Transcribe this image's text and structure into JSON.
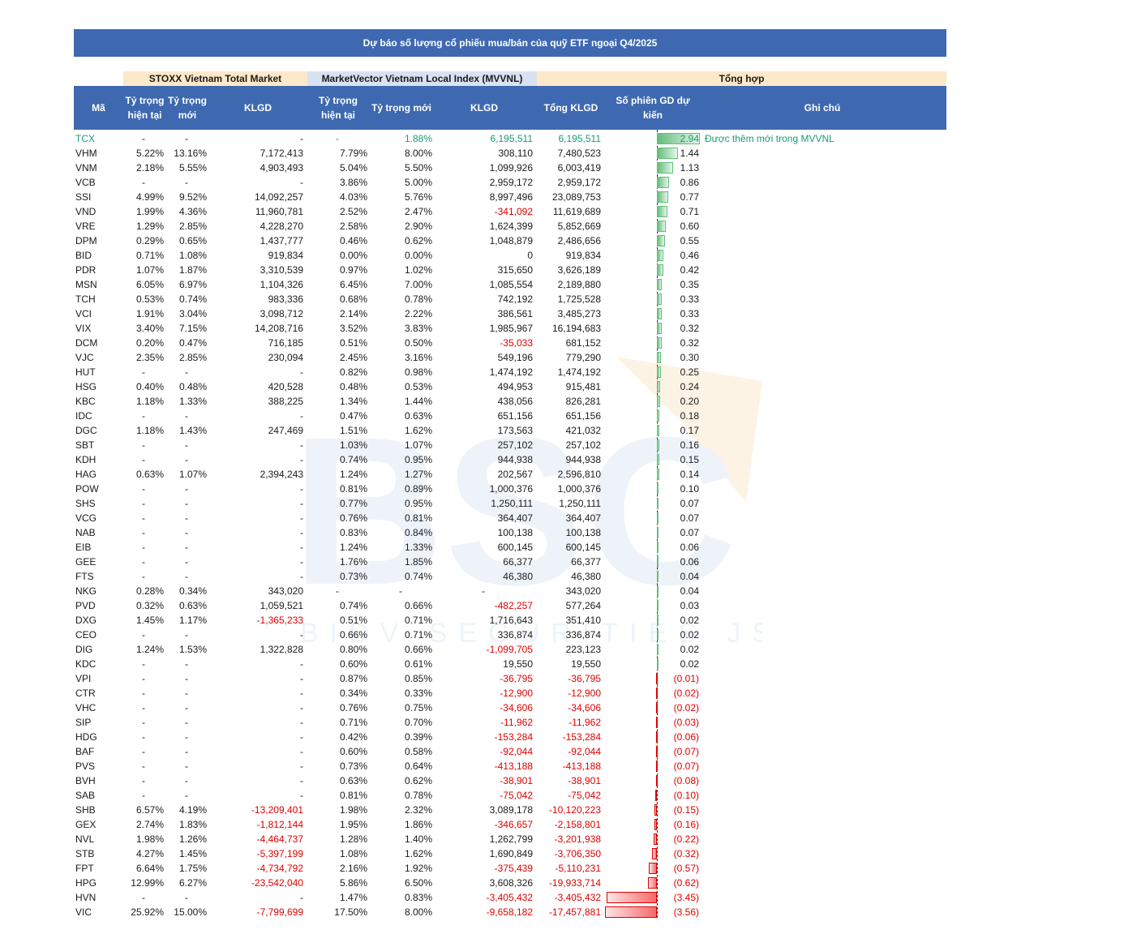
{
  "title": "Dự báo số lượng cổ phiếu mua/bán của quỹ ETF ngoại Q4/2025",
  "groups": {
    "stoxx": "STOXX Vietnam Total Market",
    "mvvnl": "MarketVector Vietnam Local Index (MVVNL)",
    "summary": "Tổng hợp"
  },
  "headers": {
    "code": "Mã",
    "w_current_1": "Tỷ trọng",
    "w_current_2": "hiện tại",
    "w_new_1": "Tỷ trọng",
    "w_new_2": "mới",
    "klgd": "KLGD",
    "w_current_b_1": "Tỷ trọng",
    "w_current_b_2": "hiện tại",
    "w_new_b": "Tỷ trọng mới",
    "klgd_b": "KLGD",
    "total": "Tổng KLGD",
    "sessions_1": "Số phiên GD dự",
    "sessions_2": "kiến",
    "note": "Ghi chú"
  },
  "watermark": {
    "logo": "BSC",
    "tagline": "BIDV SECURITIES JSC"
  },
  "rows": [
    {
      "code": "TCX",
      "s_cur": "-",
      "s_new": "-",
      "s_kl": "-",
      "m_cur": "-",
      "m_new": "1.88%",
      "m_kl": "6,195,511",
      "total": "6,195,511",
      "sessions": "2.94",
      "v": 2.94,
      "note": "Được thêm mới trong MVVNL"
    },
    {
      "code": "VHM",
      "s_cur": "5.22%",
      "s_new": "13.16%",
      "s_kl": "7,172,413",
      "m_cur": "7.79%",
      "m_new": "8.00%",
      "m_kl": "308,110",
      "total": "7,480,523",
      "sessions": "1.44",
      "v": 1.44,
      "note": ""
    },
    {
      "code": "VNM",
      "s_cur": "2.18%",
      "s_new": "5.55%",
      "s_kl": "4,903,493",
      "m_cur": "5.04%",
      "m_new": "5.50%",
      "m_kl": "1,099,926",
      "total": "6,003,419",
      "sessions": "1.13",
      "v": 1.13,
      "note": ""
    },
    {
      "code": "VCB",
      "s_cur": "-",
      "s_new": "-",
      "s_kl": "-",
      "m_cur": "3.86%",
      "m_new": "5.00%",
      "m_kl": "2,959,172",
      "total": "2,959,172",
      "sessions": "0.86",
      "v": 0.86,
      "note": ""
    },
    {
      "code": "SSI",
      "s_cur": "4.99%",
      "s_new": "9.52%",
      "s_kl": "14,092,257",
      "m_cur": "4.03%",
      "m_new": "5.76%",
      "m_kl": "8,997,496",
      "total": "23,089,753",
      "sessions": "0.77",
      "v": 0.77,
      "note": ""
    },
    {
      "code": "VND",
      "s_cur": "1.99%",
      "s_new": "4.36%",
      "s_kl": "11,960,781",
      "m_cur": "2.52%",
      "m_new": "2.47%",
      "m_kl": "-341,092",
      "total": "11,619,689",
      "sessions": "0.71",
      "v": 0.71,
      "note": ""
    },
    {
      "code": "VRE",
      "s_cur": "1.29%",
      "s_new": "2.85%",
      "s_kl": "4,228,270",
      "m_cur": "2.58%",
      "m_new": "2.90%",
      "m_kl": "1,624,399",
      "total": "5,852,669",
      "sessions": "0.60",
      "v": 0.6,
      "note": ""
    },
    {
      "code": "DPM",
      "s_cur": "0.29%",
      "s_new": "0.65%",
      "s_kl": "1,437,777",
      "m_cur": "0.46%",
      "m_new": "0.62%",
      "m_kl": "1,048,879",
      "total": "2,486,656",
      "sessions": "0.55",
      "v": 0.55,
      "note": ""
    },
    {
      "code": "BID",
      "s_cur": "0.71%",
      "s_new": "1.08%",
      "s_kl": "919,834",
      "m_cur": "0.00%",
      "m_new": "0.00%",
      "m_kl": "0",
      "total": "919,834",
      "sessions": "0.46",
      "v": 0.46,
      "note": ""
    },
    {
      "code": "PDR",
      "s_cur": "1.07%",
      "s_new": "1.87%",
      "s_kl": "3,310,539",
      "m_cur": "0.97%",
      "m_new": "1.02%",
      "m_kl": "315,650",
      "total": "3,626,189",
      "sessions": "0.42",
      "v": 0.42,
      "note": ""
    },
    {
      "code": "MSN",
      "s_cur": "6.05%",
      "s_new": "6.97%",
      "s_kl": "1,104,326",
      "m_cur": "6.45%",
      "m_new": "7.00%",
      "m_kl": "1,085,554",
      "total": "2,189,880",
      "sessions": "0.35",
      "v": 0.35,
      "note": ""
    },
    {
      "code": "TCH",
      "s_cur": "0.53%",
      "s_new": "0.74%",
      "s_kl": "983,336",
      "m_cur": "0.68%",
      "m_new": "0.78%",
      "m_kl": "742,192",
      "total": "1,725,528",
      "sessions": "0.33",
      "v": 0.33,
      "note": ""
    },
    {
      "code": "VCI",
      "s_cur": "1.91%",
      "s_new": "3.04%",
      "s_kl": "3,098,712",
      "m_cur": "2.14%",
      "m_new": "2.22%",
      "m_kl": "386,561",
      "total": "3,485,273",
      "sessions": "0.33",
      "v": 0.33,
      "note": ""
    },
    {
      "code": "VIX",
      "s_cur": "3.40%",
      "s_new": "7.15%",
      "s_kl": "14,208,716",
      "m_cur": "3.52%",
      "m_new": "3.83%",
      "m_kl": "1,985,967",
      "total": "16,194,683",
      "sessions": "0.32",
      "v": 0.32,
      "note": ""
    },
    {
      "code": "DCM",
      "s_cur": "0.20%",
      "s_new": "0.47%",
      "s_kl": "716,185",
      "m_cur": "0.51%",
      "m_new": "0.50%",
      "m_kl": "-35,033",
      "total": "681,152",
      "sessions": "0.32",
      "v": 0.32,
      "note": ""
    },
    {
      "code": "VJC",
      "s_cur": "2.35%",
      "s_new": "2.85%",
      "s_kl": "230,094",
      "m_cur": "2.45%",
      "m_new": "3.16%",
      "m_kl": "549,196",
      "total": "779,290",
      "sessions": "0.30",
      "v": 0.3,
      "note": ""
    },
    {
      "code": "HUT",
      "s_cur": "-",
      "s_new": "-",
      "s_kl": "-",
      "m_cur": "0.82%",
      "m_new": "0.98%",
      "m_kl": "1,474,192",
      "total": "1,474,192",
      "sessions": "0.25",
      "v": 0.25,
      "note": ""
    },
    {
      "code": "HSG",
      "s_cur": "0.40%",
      "s_new": "0.48%",
      "s_kl": "420,528",
      "m_cur": "0.48%",
      "m_new": "0.53%",
      "m_kl": "494,953",
      "total": "915,481",
      "sessions": "0.24",
      "v": 0.24,
      "note": ""
    },
    {
      "code": "KBC",
      "s_cur": "1.18%",
      "s_new": "1.33%",
      "s_kl": "388,225",
      "m_cur": "1.34%",
      "m_new": "1.44%",
      "m_kl": "438,056",
      "total": "826,281",
      "sessions": "0.20",
      "v": 0.2,
      "note": ""
    },
    {
      "code": "IDC",
      "s_cur": "-",
      "s_new": "-",
      "s_kl": "-",
      "m_cur": "0.47%",
      "m_new": "0.63%",
      "m_kl": "651,156",
      "total": "651,156",
      "sessions": "0.18",
      "v": 0.18,
      "note": ""
    },
    {
      "code": "DGC",
      "s_cur": "1.18%",
      "s_new": "1.43%",
      "s_kl": "247,469",
      "m_cur": "1.51%",
      "m_new": "1.62%",
      "m_kl": "173,563",
      "total": "421,032",
      "sessions": "0.17",
      "v": 0.17,
      "note": ""
    },
    {
      "code": "SBT",
      "s_cur": "-",
      "s_new": "-",
      "s_kl": "-",
      "m_cur": "1.03%",
      "m_new": "1.07%",
      "m_kl": "257,102",
      "total": "257,102",
      "sessions": "0.16",
      "v": 0.16,
      "note": ""
    },
    {
      "code": "KDH",
      "s_cur": "-",
      "s_new": "-",
      "s_kl": "-",
      "m_cur": "0.74%",
      "m_new": "0.95%",
      "m_kl": "944,938",
      "total": "944,938",
      "sessions": "0.15",
      "v": 0.15,
      "note": ""
    },
    {
      "code": "HAG",
      "s_cur": "0.63%",
      "s_new": "1.07%",
      "s_kl": "2,394,243",
      "m_cur": "1.24%",
      "m_new": "1.27%",
      "m_kl": "202,567",
      "total": "2,596,810",
      "sessions": "0.14",
      "v": 0.14,
      "note": ""
    },
    {
      "code": "POW",
      "s_cur": "-",
      "s_new": "-",
      "s_kl": "-",
      "m_cur": "0.81%",
      "m_new": "0.89%",
      "m_kl": "1,000,376",
      "total": "1,000,376",
      "sessions": "0.10",
      "v": 0.1,
      "note": ""
    },
    {
      "code": "SHS",
      "s_cur": "-",
      "s_new": "-",
      "s_kl": "-",
      "m_cur": "0.77%",
      "m_new": "0.95%",
      "m_kl": "1,250,111",
      "total": "1,250,111",
      "sessions": "0.07",
      "v": 0.07,
      "note": ""
    },
    {
      "code": "VCG",
      "s_cur": "-",
      "s_new": "-",
      "s_kl": "-",
      "m_cur": "0.76%",
      "m_new": "0.81%",
      "m_kl": "364,407",
      "total": "364,407",
      "sessions": "0.07",
      "v": 0.07,
      "note": ""
    },
    {
      "code": "NAB",
      "s_cur": "-",
      "s_new": "-",
      "s_kl": "-",
      "m_cur": "0.83%",
      "m_new": "0.84%",
      "m_kl": "100,138",
      "total": "100,138",
      "sessions": "0.07",
      "v": 0.07,
      "note": ""
    },
    {
      "code": "EIB",
      "s_cur": "-",
      "s_new": "-",
      "s_kl": "-",
      "m_cur": "1.24%",
      "m_new": "1.33%",
      "m_kl": "600,145",
      "total": "600,145",
      "sessions": "0.06",
      "v": 0.06,
      "note": ""
    },
    {
      "code": "GEE",
      "s_cur": "-",
      "s_new": "-",
      "s_kl": "-",
      "m_cur": "1.76%",
      "m_new": "1.85%",
      "m_kl": "66,377",
      "total": "66,377",
      "sessions": "0.06",
      "v": 0.06,
      "note": ""
    },
    {
      "code": "FTS",
      "s_cur": "-",
      "s_new": "-",
      "s_kl": "-",
      "m_cur": "0.73%",
      "m_new": "0.74%",
      "m_kl": "46,380",
      "total": "46,380",
      "sessions": "0.04",
      "v": 0.04,
      "note": ""
    },
    {
      "code": "NKG",
      "s_cur": "0.28%",
      "s_new": "0.34%",
      "s_kl": "343,020",
      "m_cur": "-",
      "m_new": "-",
      "m_kl": "-",
      "total": "343,020",
      "sessions": "0.04",
      "v": 0.04,
      "note": ""
    },
    {
      "code": "PVD",
      "s_cur": "0.32%",
      "s_new": "0.63%",
      "s_kl": "1,059,521",
      "m_cur": "0.74%",
      "m_new": "0.66%",
      "m_kl": "-482,257",
      "total": "577,264",
      "sessions": "0.03",
      "v": 0.03,
      "note": ""
    },
    {
      "code": "DXG",
      "s_cur": "1.45%",
      "s_new": "1.17%",
      "s_kl": "-1,365,233",
      "m_cur": "0.51%",
      "m_new": "0.71%",
      "m_kl": "1,716,643",
      "total": "351,410",
      "sessions": "0.02",
      "v": 0.02,
      "note": ""
    },
    {
      "code": "CEO",
      "s_cur": "-",
      "s_new": "-",
      "s_kl": "-",
      "m_cur": "0.66%",
      "m_new": "0.71%",
      "m_kl": "336,874",
      "total": "336,874",
      "sessions": "0.02",
      "v": 0.02,
      "note": ""
    },
    {
      "code": "DIG",
      "s_cur": "1.24%",
      "s_new": "1.53%",
      "s_kl": "1,322,828",
      "m_cur": "0.80%",
      "m_new": "0.66%",
      "m_kl": "-1,099,705",
      "total": "223,123",
      "sessions": "0.02",
      "v": 0.02,
      "note": ""
    },
    {
      "code": "KDC",
      "s_cur": "-",
      "s_new": "-",
      "s_kl": "-",
      "m_cur": "0.60%",
      "m_new": "0.61%",
      "m_kl": "19,550",
      "total": "19,550",
      "sessions": "0.02",
      "v": 0.02,
      "note": ""
    },
    {
      "code": "VPI",
      "s_cur": "-",
      "s_new": "-",
      "s_kl": "-",
      "m_cur": "0.87%",
      "m_new": "0.85%",
      "m_kl": "-36,795",
      "total": "-36,795",
      "sessions": "(0.01)",
      "v": -0.01,
      "note": ""
    },
    {
      "code": "CTR",
      "s_cur": "-",
      "s_new": "-",
      "s_kl": "-",
      "m_cur": "0.34%",
      "m_new": "0.33%",
      "m_kl": "-12,900",
      "total": "-12,900",
      "sessions": "(0.02)",
      "v": -0.02,
      "note": ""
    },
    {
      "code": "VHC",
      "s_cur": "-",
      "s_new": "-",
      "s_kl": "-",
      "m_cur": "0.76%",
      "m_new": "0.75%",
      "m_kl": "-34,606",
      "total": "-34,606",
      "sessions": "(0.02)",
      "v": -0.02,
      "note": ""
    },
    {
      "code": "SIP",
      "s_cur": "-",
      "s_new": "-",
      "s_kl": "-",
      "m_cur": "0.71%",
      "m_new": "0.70%",
      "m_kl": "-11,962",
      "total": "-11,962",
      "sessions": "(0.03)",
      "v": -0.03,
      "note": ""
    },
    {
      "code": "HDG",
      "s_cur": "-",
      "s_new": "-",
      "s_kl": "-",
      "m_cur": "0.42%",
      "m_new": "0.39%",
      "m_kl": "-153,284",
      "total": "-153,284",
      "sessions": "(0.06)",
      "v": -0.06,
      "note": ""
    },
    {
      "code": "BAF",
      "s_cur": "-",
      "s_new": "-",
      "s_kl": "-",
      "m_cur": "0.60%",
      "m_new": "0.58%",
      "m_kl": "-92,044",
      "total": "-92,044",
      "sessions": "(0.07)",
      "v": -0.07,
      "note": ""
    },
    {
      "code": "PVS",
      "s_cur": "-",
      "s_new": "-",
      "s_kl": "-",
      "m_cur": "0.73%",
      "m_new": "0.64%",
      "m_kl": "-413,188",
      "total": "-413,188",
      "sessions": "(0.07)",
      "v": -0.07,
      "note": ""
    },
    {
      "code": "BVH",
      "s_cur": "-",
      "s_new": "-",
      "s_kl": "-",
      "m_cur": "0.63%",
      "m_new": "0.62%",
      "m_kl": "-38,901",
      "total": "-38,901",
      "sessions": "(0.08)",
      "v": -0.08,
      "note": ""
    },
    {
      "code": "SAB",
      "s_cur": "-",
      "s_new": "-",
      "s_kl": "-",
      "m_cur": "0.81%",
      "m_new": "0.78%",
      "m_kl": "-75,042",
      "total": "-75,042",
      "sessions": "(0.10)",
      "v": -0.1,
      "note": ""
    },
    {
      "code": "SHB",
      "s_cur": "6.57%",
      "s_new": "4.19%",
      "s_kl": "-13,209,401",
      "m_cur": "1.98%",
      "m_new": "2.32%",
      "m_kl": "3,089,178",
      "total": "-10,120,223",
      "sessions": "(0.15)",
      "v": -0.15,
      "note": ""
    },
    {
      "code": "GEX",
      "s_cur": "2.74%",
      "s_new": "1.83%",
      "s_kl": "-1,812,144",
      "m_cur": "1.95%",
      "m_new": "1.86%",
      "m_kl": "-346,657",
      "total": "-2,158,801",
      "sessions": "(0.16)",
      "v": -0.16,
      "note": ""
    },
    {
      "code": "NVL",
      "s_cur": "1.98%",
      "s_new": "1.26%",
      "s_kl": "-4,464,737",
      "m_cur": "1.28%",
      "m_new": "1.40%",
      "m_kl": "1,262,799",
      "total": "-3,201,938",
      "sessions": "(0.22)",
      "v": -0.22,
      "note": ""
    },
    {
      "code": "STB",
      "s_cur": "4.27%",
      "s_new": "1.45%",
      "s_kl": "-5,397,199",
      "m_cur": "1.08%",
      "m_new": "1.62%",
      "m_kl": "1,690,849",
      "total": "-3,706,350",
      "sessions": "(0.32)",
      "v": -0.32,
      "note": ""
    },
    {
      "code": "FPT",
      "s_cur": "6.64%",
      "s_new": "1.75%",
      "s_kl": "-4,734,792",
      "m_cur": "2.16%",
      "m_new": "1.92%",
      "m_kl": "-375,439",
      "total": "-5,110,231",
      "sessions": "(0.57)",
      "v": -0.57,
      "note": ""
    },
    {
      "code": "HPG",
      "s_cur": "12.99%",
      "s_new": "6.27%",
      "s_kl": "-23,542,040",
      "m_cur": "5.86%",
      "m_new": "6.50%",
      "m_kl": "3,608,326",
      "total": "-19,933,714",
      "sessions": "(0.62)",
      "v": -0.62,
      "note": ""
    },
    {
      "code": "HVN",
      "s_cur": "-",
      "s_new": "-",
      "s_kl": "-",
      "m_cur": "1.47%",
      "m_new": "0.83%",
      "m_kl": "-3,405,432",
      "total": "-3,405,432",
      "sessions": "(3.45)",
      "v": -3.45,
      "note": ""
    },
    {
      "code": "VIC",
      "s_cur": "25.92%",
      "s_new": "15.00%",
      "s_kl": "-7,799,699",
      "m_cur": "17.50%",
      "m_new": "8.00%",
      "m_kl": "-9,658,182",
      "total": "-17,457,881",
      "sessions": "(3.56)",
      "v": -3.56,
      "note": ""
    }
  ]
}
